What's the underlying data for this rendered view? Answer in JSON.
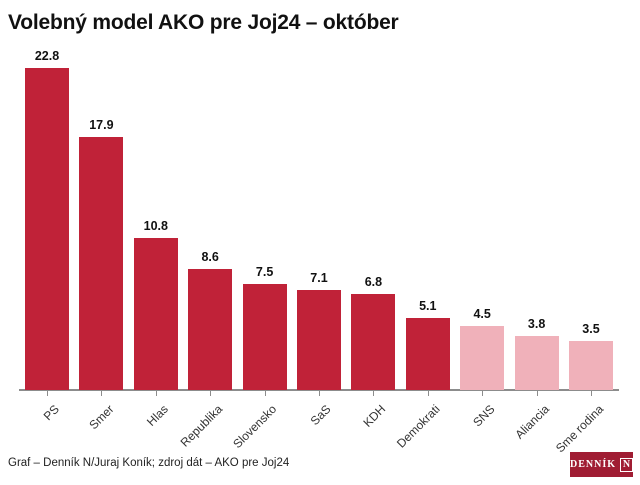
{
  "title": "Volebný model AKO pre Joj24 – október",
  "chart_data": {
    "type": "bar",
    "title": "Volebný model AKO pre Joj24 – október",
    "categories": [
      "PS",
      "Smer",
      "Hlas",
      "Republika",
      "Slovensko",
      "SaS",
      "KDH",
      "Demokrati",
      "SNS",
      "Aliancia",
      "Sme rodina"
    ],
    "values": [
      22.8,
      17.9,
      10.8,
      8.6,
      7.5,
      7.1,
      6.8,
      5.1,
      4.5,
      3.8,
      3.5
    ],
    "bar_colors": [
      "#c02238",
      "#c02238",
      "#c02238",
      "#c02238",
      "#c02238",
      "#c02238",
      "#c02238",
      "#c02238",
      "#f0b1ba",
      "#f0b1ba",
      "#f0b1ba"
    ],
    "value_labels": [
      "22.8",
      "17.9",
      "10.8",
      "8.6",
      "7.5",
      "7.1",
      "6.8",
      "5.1",
      "4.5",
      "3.8",
      "3.5"
    ],
    "xlabel": "",
    "ylabel": "",
    "ylim": [
      0,
      24
    ],
    "grid": false,
    "legend": false,
    "value_labels_position": "above-bars",
    "category_label_rotation_deg": 45
  },
  "footer": {
    "credit": "Graf – Denník N/Juraj Koník; zdroj dát – AKO pre Joj24",
    "logo": {
      "text": "DENNÍK",
      "n": "N"
    }
  },
  "colors": {
    "bar_main": "#c02238",
    "bar_muted": "#f0b1ba",
    "axis": "#8c8c8c",
    "logo_bg": "#a01d33",
    "title_text": "#111111",
    "label_text": "#333333"
  }
}
